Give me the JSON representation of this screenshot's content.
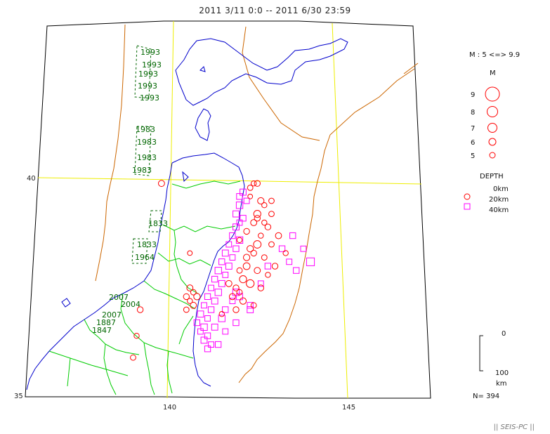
{
  "title": "2011  3/11  0:0  --  2011  6/30  23:59",
  "axis": {
    "lat_labels": [
      "40",
      "35"
    ],
    "lon_labels": [
      "140",
      "145"
    ]
  },
  "historic_years": [
    "1993",
    "1993",
    "1993",
    "1993",
    "1993",
    "1983",
    "1983",
    "1983",
    "1983",
    "1833",
    "1833",
    "1964",
    "2007",
    "2004",
    "2007",
    "1887",
    "1847"
  ],
  "legend": {
    "magnitude_range": "M : 5 <=> 9.9",
    "magnitude_header": "M",
    "magnitudes": [
      "9",
      "8",
      "7",
      "6",
      "5"
    ],
    "depth_header": "DEPTH",
    "depth_items": [
      "0km",
      "20km",
      "40km"
    ],
    "depth_scale_top": "0",
    "depth_scale_bottom": "100",
    "depth_scale_unit": "km"
  },
  "count": "N= 394",
  "credit": "|| SEIS-PC ||",
  "colors": {
    "coast": "#0000cc",
    "prefecture": "#00cc00",
    "plate_boundary": "#cc6600",
    "grid": "#eeee00",
    "shallow": "#ff0000",
    "deep": "#ff00ff",
    "historic": "#006600"
  },
  "events": {
    "shallow": [
      [
        139.8,
        39.9,
        5.5
      ],
      [
        142.3,
        39.8,
        5.3
      ],
      [
        142.4,
        39.9,
        5.2
      ],
      [
        142.5,
        39.9,
        5.4
      ],
      [
        142.3,
        39.6,
        5.1
      ],
      [
        142.6,
        39.5,
        5.6
      ],
      [
        142.9,
        39.5,
        5.3
      ],
      [
        142.7,
        39.4,
        5.2
      ],
      [
        142.5,
        39.2,
        5.8
      ],
      [
        142.4,
        39.0,
        5.5
      ],
      [
        142.8,
        38.9,
        5.4
      ],
      [
        142.6,
        38.7,
        5.2
      ],
      [
        142.5,
        38.5,
        5.9
      ],
      [
        142.3,
        38.4,
        5.6
      ],
      [
        142.4,
        38.3,
        5.4
      ],
      [
        142.7,
        38.2,
        5.3
      ],
      [
        142.2,
        38.0,
        5.7
      ],
      [
        142.5,
        37.9,
        5.5
      ],
      [
        142.8,
        37.8,
        5.2
      ],
      [
        142.1,
        37.7,
        5.8
      ],
      [
        142.3,
        37.6,
        6.0
      ],
      [
        142.6,
        37.5,
        5.4
      ],
      [
        142.0,
        37.4,
        5.3
      ],
      [
        141.8,
        37.3,
        5.5
      ],
      [
        142.1,
        37.2,
        5.6
      ],
      [
        142.4,
        37.1,
        5.3
      ],
      [
        141.9,
        37.0,
        5.4
      ],
      [
        141.5,
        36.9,
        5.2
      ],
      [
        140.6,
        37.5,
        5.5
      ],
      [
        140.7,
        37.4,
        5.3
      ],
      [
        140.8,
        37.3,
        5.6
      ],
      [
        140.5,
        37.3,
        5.4
      ],
      [
        140.6,
        37.2,
        5.2
      ],
      [
        140.7,
        37.1,
        5.5
      ],
      [
        140.5,
        37.0,
        5.3
      ],
      [
        139.2,
        37.0,
        5.4
      ],
      [
        139.1,
        36.4,
        5.2
      ],
      [
        139.0,
        35.9,
        5.3
      ],
      [
        143.0,
        38.0,
        5.4
      ],
      [
        143.3,
        38.3,
        5.2
      ],
      [
        142.9,
        38.5,
        5.3
      ],
      [
        143.1,
        38.7,
        5.5
      ],
      [
        142.2,
        38.8,
        5.4
      ],
      [
        142.0,
        38.6,
        5.2
      ],
      [
        142.2,
        38.2,
        5.6
      ],
      [
        142.0,
        37.9,
        5.3
      ],
      [
        141.7,
        37.6,
        5.5
      ],
      [
        141.9,
        37.5,
        5.4
      ],
      [
        140.6,
        38.3,
        5.1
      ],
      [
        142.5,
        39.1,
        5.4
      ],
      [
        142.7,
        39.0,
        5.2
      ],
      [
        142.9,
        39.2,
        5.3
      ]
    ],
    "deep": [
      [
        142.1,
        39.7,
        5.5
      ],
      [
        142.0,
        39.6,
        5.4
      ],
      [
        142.2,
        39.5,
        5.3
      ],
      [
        142.0,
        39.4,
        5.6
      ],
      [
        141.9,
        39.2,
        5.5
      ],
      [
        142.1,
        39.1,
        5.4
      ],
      [
        142.0,
        39.0,
        5.3
      ],
      [
        141.9,
        38.9,
        5.5
      ],
      [
        141.8,
        38.7,
        5.4
      ],
      [
        142.0,
        38.6,
        5.6
      ],
      [
        141.7,
        38.5,
        5.3
      ],
      [
        141.9,
        38.4,
        5.4
      ],
      [
        141.6,
        38.3,
        5.5
      ],
      [
        141.8,
        38.2,
        5.3
      ],
      [
        141.5,
        38.1,
        5.4
      ],
      [
        141.7,
        38.0,
        5.5
      ],
      [
        141.4,
        37.9,
        5.6
      ],
      [
        141.6,
        37.8,
        5.3
      ],
      [
        141.3,
        37.7,
        5.4
      ],
      [
        141.5,
        37.6,
        5.5
      ],
      [
        141.2,
        37.5,
        5.3
      ],
      [
        141.4,
        37.4,
        5.6
      ],
      [
        141.1,
        37.3,
        5.4
      ],
      [
        141.3,
        37.2,
        5.5
      ],
      [
        141.0,
        37.1,
        5.3
      ],
      [
        141.2,
        37.0,
        5.4
      ],
      [
        140.9,
        36.9,
        5.5
      ],
      [
        141.1,
        36.8,
        5.3
      ],
      [
        140.8,
        36.7,
        5.4
      ],
      [
        141.0,
        36.6,
        5.6
      ],
      [
        140.9,
        36.5,
        5.3
      ],
      [
        141.1,
        36.4,
        5.4
      ],
      [
        141.0,
        36.3,
        5.5
      ],
      [
        141.2,
        36.2,
        5.3
      ],
      [
        141.1,
        36.1,
        5.4
      ],
      [
        141.3,
        36.6,
        5.5
      ],
      [
        141.5,
        36.8,
        5.6
      ],
      [
        141.6,
        37.0,
        5.4
      ],
      [
        141.8,
        37.2,
        5.3
      ],
      [
        142.0,
        37.3,
        5.5
      ],
      [
        142.3,
        37.1,
        5.4
      ],
      [
        141.9,
        37.4,
        5.6
      ],
      [
        141.6,
        36.5,
        5.3
      ],
      [
        141.4,
        36.2,
        5.4
      ],
      [
        143.2,
        38.4,
        5.4
      ],
      [
        143.4,
        38.1,
        5.3
      ],
      [
        143.6,
        37.9,
        5.4
      ],
      [
        144.0,
        38.1,
        6.0
      ],
      [
        143.5,
        38.7,
        5.4
      ],
      [
        143.8,
        38.4,
        5.3
      ],
      [
        142.8,
        38.0,
        5.4
      ],
      [
        142.6,
        37.6,
        5.3
      ],
      [
        142.3,
        37.0,
        5.5
      ],
      [
        141.9,
        36.7,
        5.4
      ]
    ]
  }
}
